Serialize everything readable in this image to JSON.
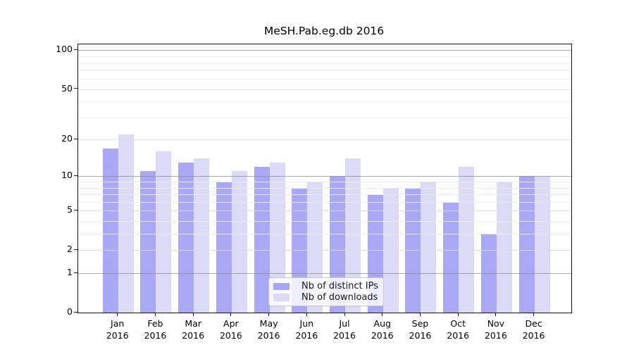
{
  "chart_data": {
    "type": "bar",
    "title": "MeSH.Pab.eg.db 2016",
    "year": "2016",
    "months": [
      "Jan",
      "Feb",
      "Mar",
      "Apr",
      "May",
      "Jun",
      "Jul",
      "Aug",
      "Sep",
      "Oct",
      "Nov",
      "Dec"
    ],
    "categories": [
      "Jan 2016",
      "Feb 2016",
      "Mar 2016",
      "Apr 2016",
      "May 2016",
      "Jun 2016",
      "Jul 2016",
      "Aug 2016",
      "Sep 2016",
      "Oct 2016",
      "Nov 2016",
      "Dec 2016"
    ],
    "series": [
      {
        "name": "Nb of distinct IPs",
        "color": "#a8a8f4",
        "values": [
          17,
          11,
          13,
          9,
          12,
          8,
          10,
          7,
          8,
          6,
          3,
          10
        ]
      },
      {
        "name": "Nb of downloads",
        "color": "#dbdbf8",
        "values": [
          22,
          16,
          14,
          11,
          13,
          9,
          14,
          8,
          9,
          12,
          9,
          10
        ]
      }
    ],
    "y_axis": {
      "scale": "log10(value+1)",
      "ticks": [
        0,
        1,
        2,
        5,
        10,
        20,
        50,
        100
      ],
      "minor_ticks": [
        3,
        4,
        6,
        7,
        8,
        9,
        30,
        40,
        60,
        70,
        80,
        90
      ],
      "range": [
        0,
        112
      ]
    },
    "grid": true,
    "legend": {
      "position": "inside-bottom-center",
      "labels": [
        "Nb of distinct IPs",
        "Nb of downloads"
      ]
    }
  }
}
